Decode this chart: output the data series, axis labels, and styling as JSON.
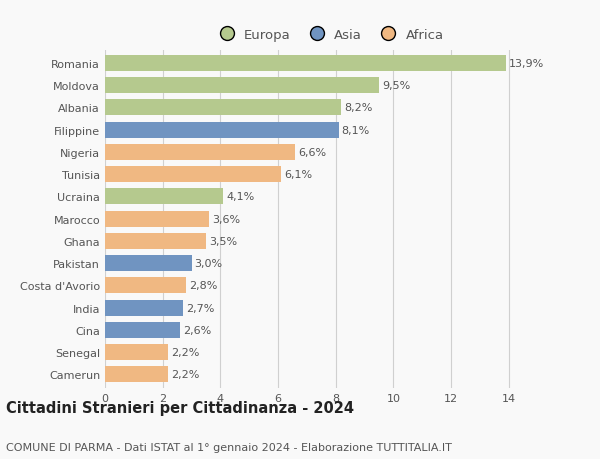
{
  "countries": [
    "Romania",
    "Moldova",
    "Albania",
    "Filippine",
    "Nigeria",
    "Tunisia",
    "Ucraina",
    "Marocco",
    "Ghana",
    "Pakistan",
    "Costa d'Avorio",
    "India",
    "Cina",
    "Senegal",
    "Camerun"
  ],
  "values": [
    13.9,
    9.5,
    8.2,
    8.1,
    6.6,
    6.1,
    4.1,
    3.6,
    3.5,
    3.0,
    2.8,
    2.7,
    2.6,
    2.2,
    2.2
  ],
  "labels": [
    "13,9%",
    "9,5%",
    "8,2%",
    "8,1%",
    "6,6%",
    "6,1%",
    "4,1%",
    "3,6%",
    "3,5%",
    "3,0%",
    "2,8%",
    "2,7%",
    "2,6%",
    "2,2%",
    "2,2%"
  ],
  "continents": [
    "Europa",
    "Europa",
    "Europa",
    "Asia",
    "Africa",
    "Africa",
    "Europa",
    "Africa",
    "Africa",
    "Asia",
    "Africa",
    "Asia",
    "Asia",
    "Africa",
    "Africa"
  ],
  "colors": {
    "Europa": "#b5c98e",
    "Asia": "#7094c1",
    "Africa": "#f0b882"
  },
  "xlim": [
    0,
    15.5
  ],
  "xticks": [
    0,
    2,
    4,
    6,
    8,
    10,
    12,
    14
  ],
  "title": "Cittadini Stranieri per Cittadinanza - 2024",
  "subtitle": "COMUNE DI PARMA - Dati ISTAT al 1° gennaio 2024 - Elaborazione TUTTITALIA.IT",
  "bg_color": "#f9f9f9",
  "grid_color": "#d0d0d0",
  "bar_height": 0.72,
  "label_fontsize": 8,
  "tick_fontsize": 8,
  "title_fontsize": 10.5,
  "subtitle_fontsize": 8
}
